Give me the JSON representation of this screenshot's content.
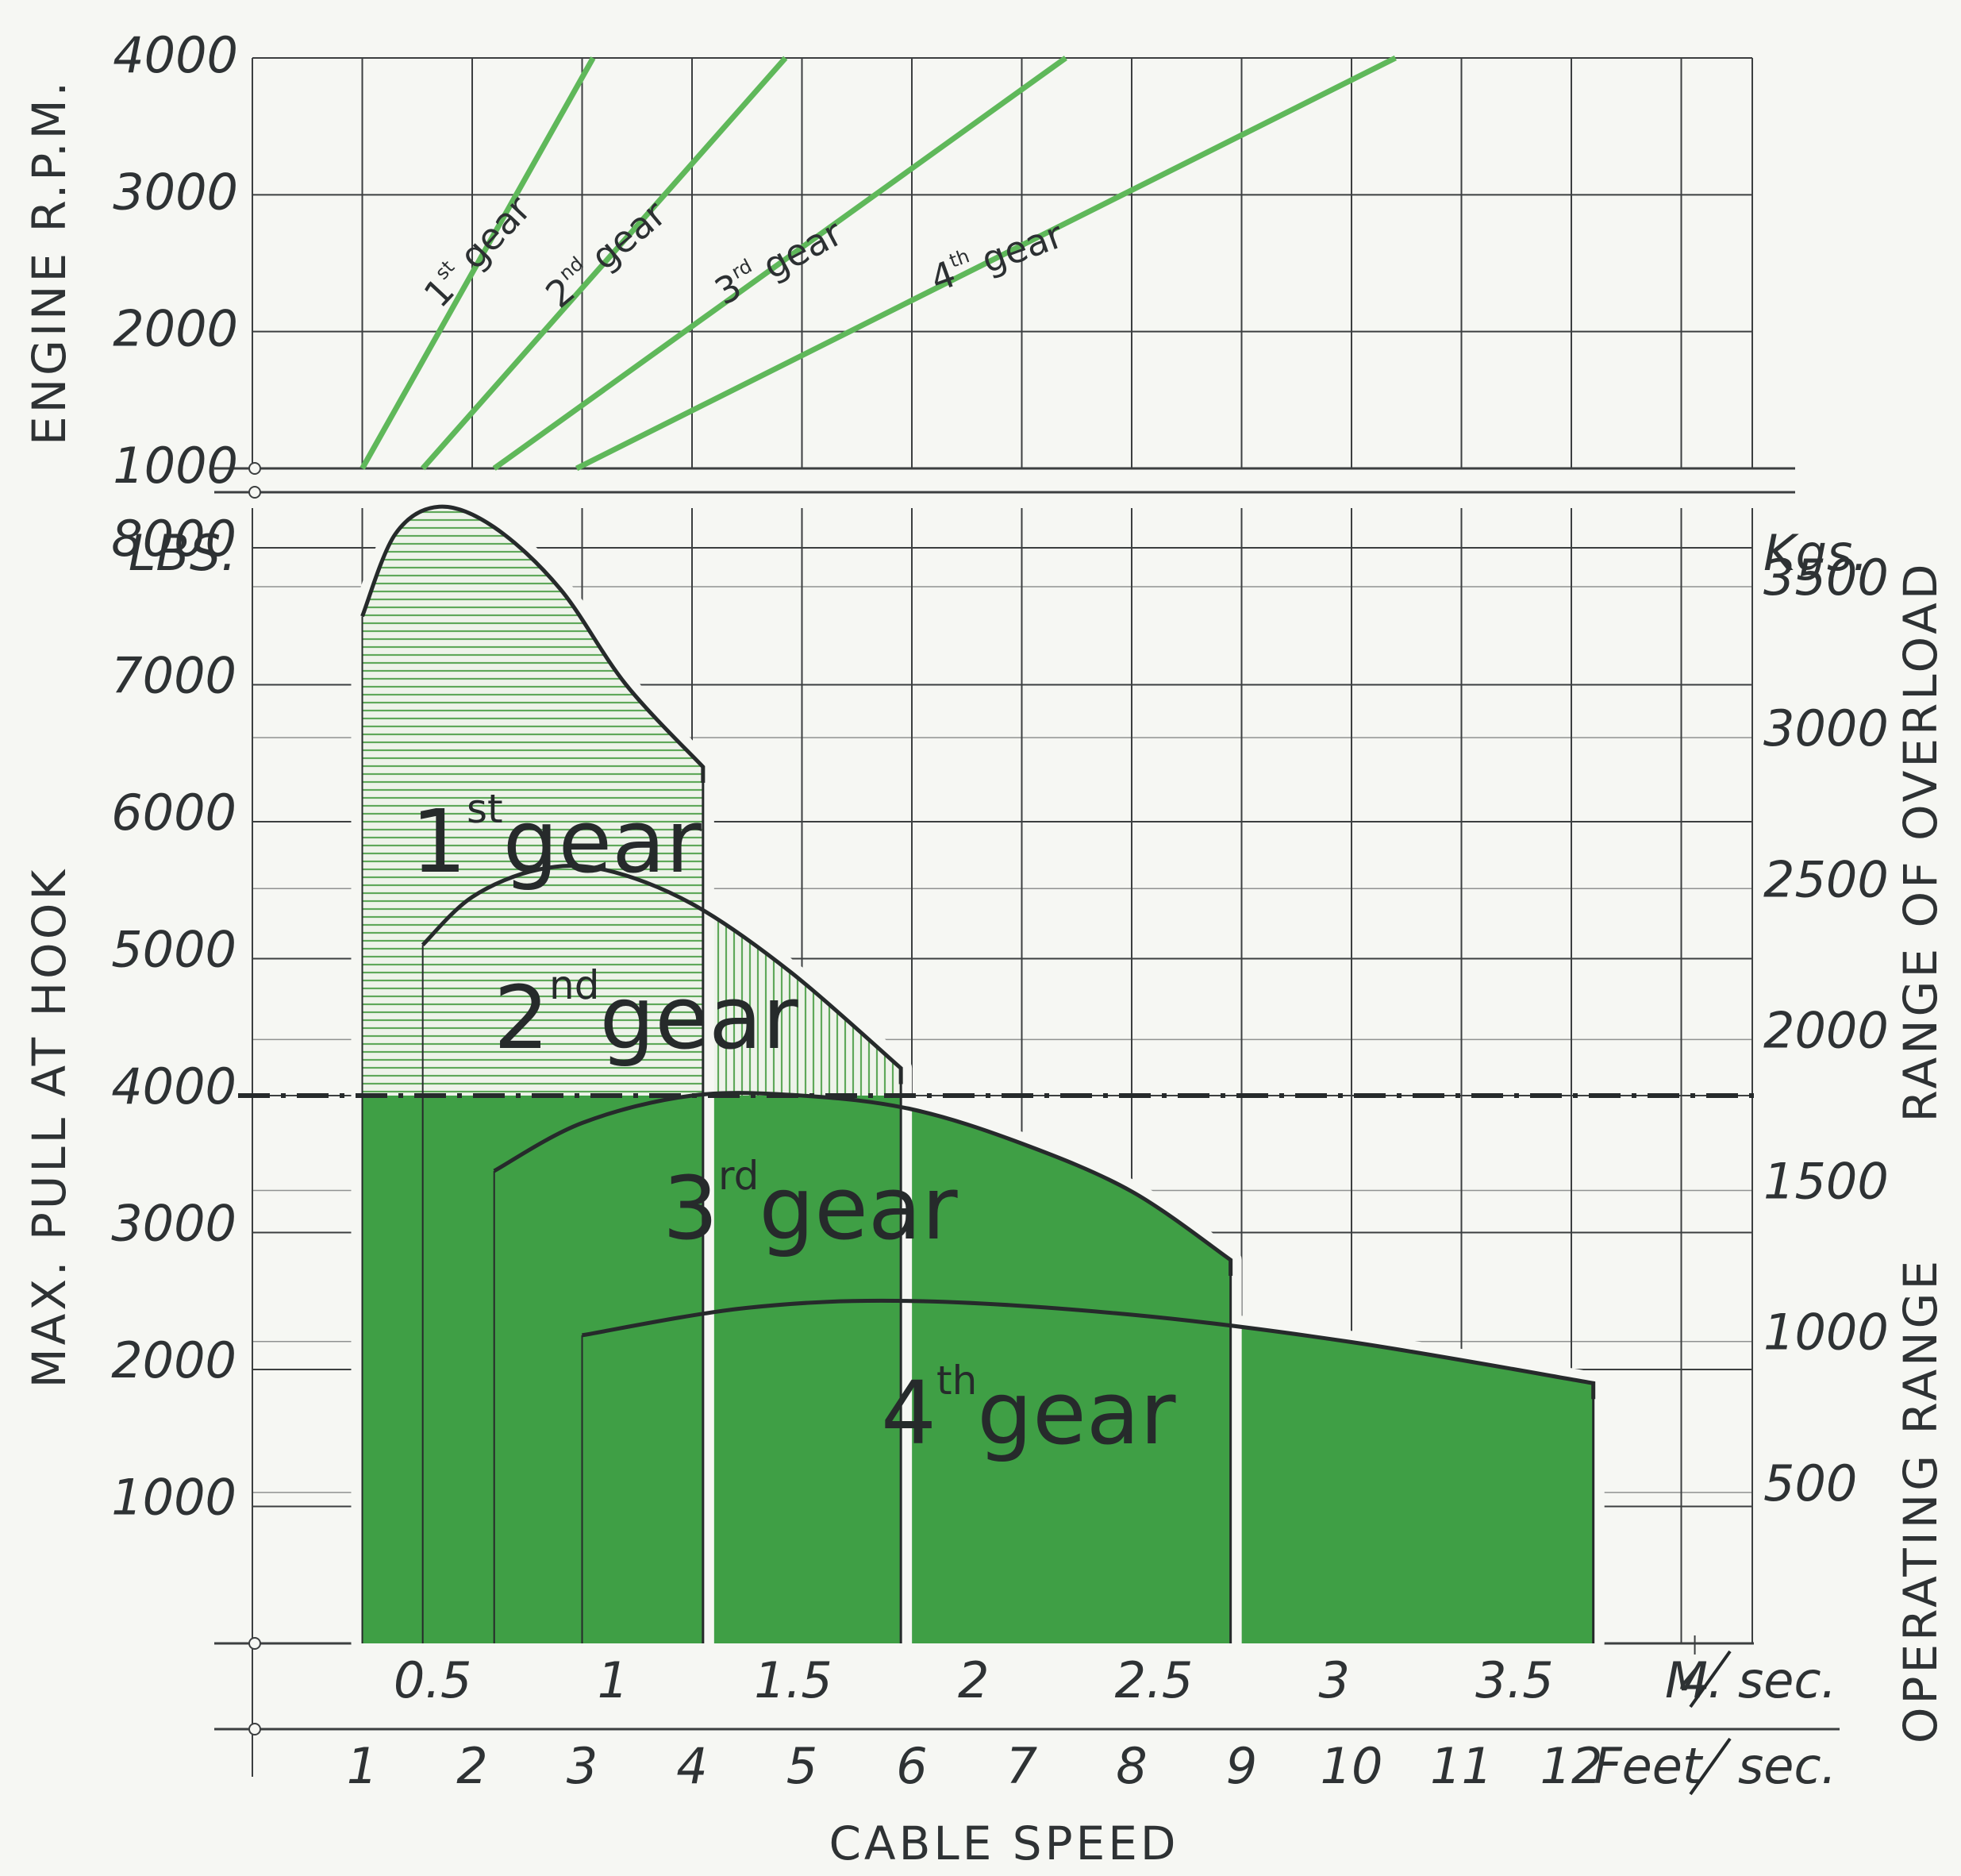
{
  "chart_data": [
    {
      "type": "line",
      "ylabel": "ENGINE R.P.M.",
      "ylim": [
        1000,
        4000
      ],
      "yticks": [
        "4000",
        "3000",
        "2000",
        "1000"
      ],
      "x_units": "Feet/sec.",
      "series": [
        {
          "name": "1st gear",
          "x": [
            1,
            3.1
          ],
          "y": [
            1000,
            4000
          ]
        },
        {
          "name": "2nd gear",
          "x": [
            1.55,
            4.85
          ],
          "y": [
            1000,
            4000
          ]
        },
        {
          "name": "3rd gear",
          "x": [
            2.2,
            7.4
          ],
          "y": [
            1000,
            4000
          ]
        },
        {
          "name": "4th gear",
          "x": [
            2.95,
            10.4
          ],
          "y": [
            1000,
            4000
          ]
        }
      ],
      "gear_labels": [
        {
          "ordinal": "1",
          "suffix": "st",
          "word": "gear"
        },
        {
          "ordinal": "2",
          "suffix": "nd",
          "word": "gear"
        },
        {
          "ordinal": "3",
          "suffix": "rd",
          "word": "gear"
        },
        {
          "ordinal": "4",
          "suffix": "th",
          "word": "gear"
        }
      ]
    },
    {
      "type": "area",
      "xlabel": "CABLE SPEED",
      "ylabel": "MAX. PULL AT HOOK",
      "ylabel_units": "LBS.",
      "ylim": [
        0,
        9000
      ],
      "yticks": [
        "8000",
        "7000",
        "6000",
        "5000",
        "4000",
        "3000",
        "2000",
        "1000"
      ],
      "y2_units": "Kgs.",
      "y2ticks": [
        "3500",
        "3000",
        "2500",
        "2000",
        "1500",
        "1000",
        "500"
      ],
      "y2_labels": [
        "RANGE OF OVERLOAD",
        "OPERATING RANGE"
      ],
      "x_units": "Feet/sec.",
      "xticks_feet": [
        "1",
        "2",
        "3",
        "4",
        "5",
        "6",
        "7",
        "8",
        "9",
        "10",
        "11",
        "12"
      ],
      "x2_units": "M./sec.",
      "xticks_msec": [
        "0.5",
        "1",
        "1.5",
        "2",
        "2.5",
        "3",
        "3.5",
        "4"
      ],
      "m_units_label": "M.",
      "sec_label": "sec.",
      "feet_units_label": "Feet",
      "operating_limit_lbs": 4000,
      "series": [
        {
          "name": "1st gear",
          "x": [
            1.0,
            1.3,
            1.7,
            2.2,
            2.8,
            3.4,
            4.1
          ],
          "y": [
            7500,
            8100,
            8300,
            8150,
            7700,
            7000,
            6400
          ]
        },
        {
          "name": "2nd gear",
          "x": [
            1.55,
            2.0,
            2.6,
            3.2,
            4.0,
            4.9,
            5.9
          ],
          "y": [
            5100,
            5450,
            5650,
            5650,
            5400,
            4900,
            4200
          ]
        },
        {
          "name": "3rd gear",
          "x": [
            2.2,
            3.0,
            4.0,
            5.0,
            6.0,
            7.0,
            8.0,
            8.9
          ],
          "y": [
            3450,
            3800,
            4000,
            4000,
            3900,
            3650,
            3300,
            2800
          ]
        },
        {
          "name": "4th gear",
          "x": [
            3.0,
            4.5,
            6.0,
            8.0,
            10.0,
            12.2
          ],
          "y": [
            2250,
            2450,
            2500,
            2400,
            2200,
            1900
          ]
        }
      ],
      "gear_labels": [
        {
          "ordinal": "1",
          "suffix": "st",
          "word": "gear"
        },
        {
          "ordinal": "2",
          "suffix": "nd",
          "word": "gear"
        },
        {
          "ordinal": "3",
          "suffix": "rd",
          "word": "gear"
        },
        {
          "ordinal": "4",
          "suffix": "th",
          "word": "gear"
        }
      ]
    }
  ],
  "colors": {
    "green_fill": "#3f9f45",
    "green_line": "#5fb85a",
    "hatch": "#5fa85a",
    "grid": "#3c3f40",
    "ink": "#262a2b",
    "paper": "#f6f7f3"
  }
}
